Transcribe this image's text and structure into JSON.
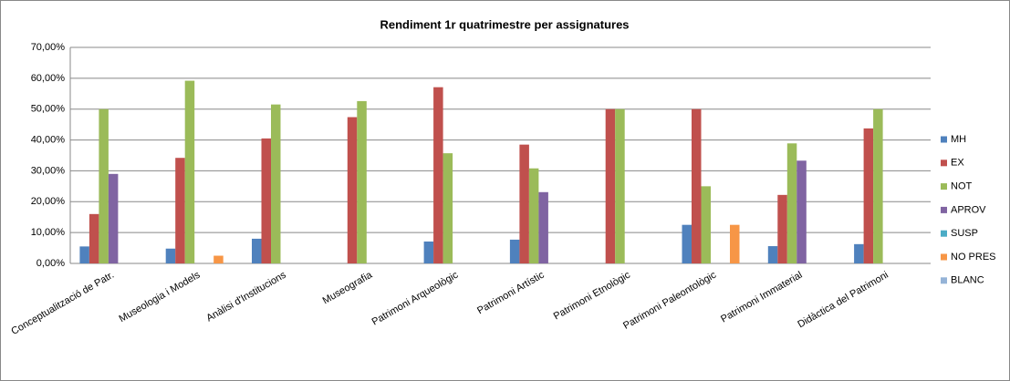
{
  "chart_data": {
    "type": "bar",
    "title": "Rendiment 1r quatrimestre per assignatures",
    "categories": [
      "Conceptualització de Patr.",
      "Museologia i Models",
      "Anàlisi d'Institucions",
      "Museografia",
      "Patrimoni Arqueològic",
      "Patrimoni Artístic",
      "Patrimoni Etnològic",
      "Patrimoni Paleontològic",
      "Patrimoni Immaterial",
      "Didàctica del Patrimoni"
    ],
    "series": [
      {
        "name": "MH",
        "color": "#4f81bd",
        "values": [
          5.5,
          4.8,
          8,
          0,
          7.1,
          7.7,
          0,
          12.5,
          5.6,
          6.25
        ]
      },
      {
        "name": "EX",
        "color": "#c0504d",
        "values": [
          16,
          34.2,
          40.5,
          47.4,
          57.1,
          38.5,
          50,
          50,
          22.2,
          43.75
        ]
      },
      {
        "name": "NOT",
        "color": "#9bbb59",
        "values": [
          50,
          59.2,
          51.5,
          52.6,
          35.7,
          30.8,
          50,
          25,
          38.9,
          50
        ]
      },
      {
        "name": "APROV",
        "color": "#8064a2",
        "values": [
          29,
          0,
          0,
          0,
          0,
          23.1,
          0,
          0,
          33.3,
          0
        ]
      },
      {
        "name": "SUSP",
        "color": "#4bacc6",
        "values": [
          0,
          0,
          0,
          0,
          0,
          0,
          0,
          0,
          0,
          0
        ]
      },
      {
        "name": "NO PRES",
        "color": "#f79646",
        "values": [
          0,
          2.5,
          0,
          0,
          0,
          0,
          0,
          12.5,
          0,
          0
        ]
      },
      {
        "name": "BLANC",
        "color": "#95b3d7",
        "values": [
          0,
          0,
          0,
          0,
          0,
          0,
          0,
          0,
          0,
          0
        ]
      }
    ],
    "ylim": [
      0,
      70
    ],
    "yticks": [
      {
        "value": 0,
        "label": "0,00%"
      },
      {
        "value": 10,
        "label": "10,00%"
      },
      {
        "value": 20,
        "label": "20,00%"
      },
      {
        "value": 30,
        "label": "30,00%"
      },
      {
        "value": 40,
        "label": "40,00%"
      },
      {
        "value": 50,
        "label": "50,00%"
      },
      {
        "value": 60,
        "label": "60,00%"
      },
      {
        "value": 70,
        "label": "70,00%"
      }
    ],
    "grid": true,
    "legend": "right"
  }
}
